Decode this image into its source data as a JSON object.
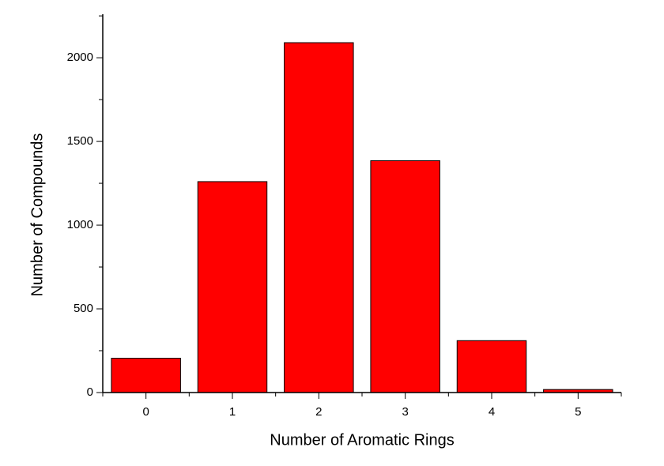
{
  "chart_data": {
    "type": "bar",
    "x_label": "Number of Aromatic Rings",
    "y_label": "Number of Compounds",
    "categories": [
      "0",
      "1",
      "2",
      "3",
      "4",
      "5"
    ],
    "values": [
      205,
      1260,
      2090,
      1385,
      310,
      18
    ],
    "color": "#ff0000",
    "ylim": [
      0,
      2260
    ],
    "yticks": [
      0,
      500,
      1000,
      1500,
      2000
    ],
    "grid": false
  }
}
